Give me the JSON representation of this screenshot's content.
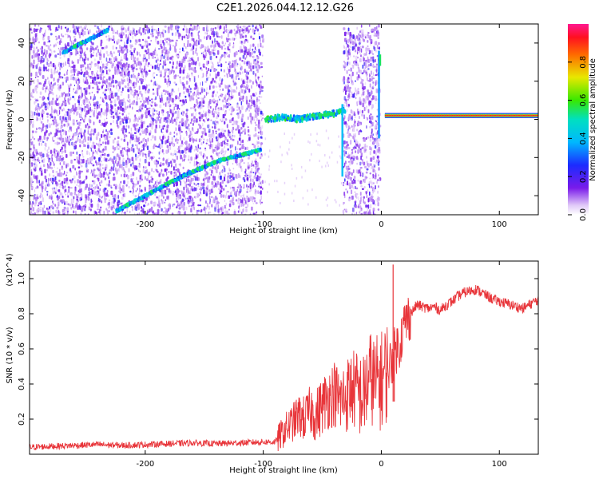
{
  "figure": {
    "title": "C2E1.2026.044.12.12.G26"
  },
  "chart_data": [
    {
      "type": "heatmap",
      "title": "C2E1.2026.044.12.12.G26",
      "xlabel": "Height of straight line (km)",
      "ylabel": "Frequency (Hz)",
      "xlim": [
        -298,
        133
      ],
      "ylim": [
        -50,
        50
      ],
      "xticks": [
        -200,
        -100,
        0,
        100
      ],
      "xtick_labels": [
        "-200",
        "-100",
        "0",
        "100"
      ],
      "yticks": [
        -40,
        -20,
        0,
        20,
        40
      ],
      "ytick_labels": [
        "-40",
        "-20",
        "0",
        "20",
        "40"
      ],
      "colorbar": {
        "label": "Normalized spectral amplitude",
        "range": [
          0,
          1
        ],
        "ticks": [
          0.0,
          0.2,
          0.4,
          0.6,
          0.8
        ],
        "tick_labels": [
          "0.0",
          "0.2",
          "0.4",
          "0.6",
          "0.8"
        ]
      },
      "noise_regions": [
        {
          "x_from": -298,
          "x_to": -101,
          "amplitude": 0.18
        },
        {
          "x_from": -33,
          "x_to": -2,
          "amplitude": 0.15
        }
      ],
      "features": [
        {
          "name": "diagonal-streak-upper",
          "x": [
            -270,
            -232
          ],
          "y": [
            35,
            47
          ],
          "amplitude": 0.45
        },
        {
          "name": "diagonal-streak-lower",
          "x": [
            -225,
            -170,
            -140,
            -103
          ],
          "y": [
            -48,
            -30,
            -22,
            -16
          ],
          "amplitude": 0.5
        },
        {
          "name": "band-middle",
          "x": [
            -98,
            -85,
            -70,
            -55,
            -40,
            -32
          ],
          "y": [
            0,
            1,
            0,
            2,
            3,
            5
          ],
          "amplitude": 0.55
        },
        {
          "name": "band-right",
          "x": [
            3,
            133
          ],
          "y": [
            2,
            2
          ],
          "amplitude": 0.95
        }
      ]
    },
    {
      "type": "line",
      "xlabel": "Height of straight line (km)",
      "ylabel": "SNR (10 * v/v)",
      "y_multiplier": "(x10^4)",
      "xlim": [
        -298,
        133
      ],
      "ylim": [
        0.0,
        1.1
      ],
      "xticks": [
        -200,
        -100,
        0,
        100
      ],
      "xtick_labels": [
        "-200",
        "-100",
        "0",
        "100"
      ],
      "yticks": [
        0.2,
        0.4,
        0.6,
        0.8,
        1.0
      ],
      "ytick_labels": [
        "0.2",
        "0.4",
        "0.6",
        "0.8",
        "1.0"
      ],
      "series": [
        {
          "name": "SNR",
          "color": "#e8353a",
          "x": [
            -298,
            -280,
            -260,
            -240,
            -220,
            -200,
            -180,
            -160,
            -140,
            -120,
            -100,
            -90,
            -85,
            -80,
            -75,
            -70,
            -65,
            -60,
            -55,
            -50,
            -45,
            -40,
            -35,
            -30,
            -25,
            -20,
            -15,
            -10,
            -5,
            0,
            5,
            10,
            12,
            15,
            20,
            25,
            30,
            35,
            40,
            45,
            50,
            55,
            60,
            65,
            70,
            75,
            80,
            85,
            90,
            95,
            100,
            105,
            110,
            115,
            120,
            125,
            130,
            133
          ],
          "y": [
            0.04,
            0.045,
            0.05,
            0.055,
            0.05,
            0.055,
            0.06,
            0.065,
            0.06,
            0.065,
            0.07,
            0.07,
            0.11,
            0.15,
            0.18,
            0.22,
            0.2,
            0.25,
            0.22,
            0.28,
            0.32,
            0.35,
            0.3,
            0.33,
            0.38,
            0.35,
            0.32,
            0.45,
            0.4,
            0.42,
            0.48,
            0.55,
            0.6,
            0.62,
            0.75,
            0.8,
            0.85,
            0.84,
            0.83,
            0.84,
            0.82,
            0.85,
            0.87,
            0.9,
            0.92,
            0.93,
            0.94,
            0.92,
            0.9,
            0.88,
            0.87,
            0.86,
            0.85,
            0.84,
            0.83,
            0.85,
            0.87,
            0.88
          ],
          "spikes": [
            {
              "x": 10,
              "y": 1.08
            },
            {
              "x": 11,
              "y": 0.7
            }
          ]
        }
      ]
    }
  ]
}
